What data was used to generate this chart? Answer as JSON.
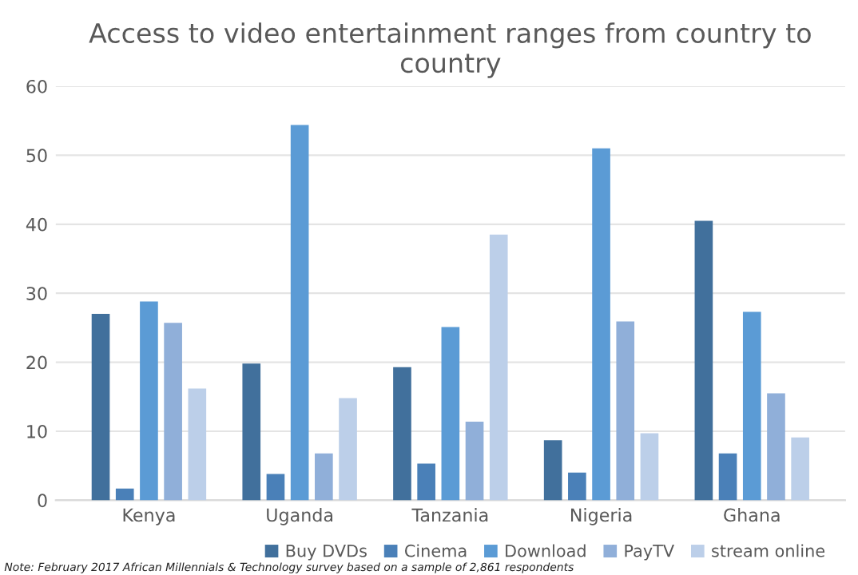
{
  "chart_data": {
    "type": "bar",
    "title": "Access to video entertainment ranges from country to country",
    "categories": [
      "Kenya",
      "Uganda",
      "Tanzania",
      "Nigeria",
      "Ghana"
    ],
    "series": [
      {
        "name": "Buy DVDs",
        "color": "#41709c",
        "values": [
          27,
          19.8,
          19.3,
          8.7,
          40.5
        ]
      },
      {
        "name": "Cinema",
        "color": "#4a80b8",
        "values": [
          1.7,
          3.8,
          5.3,
          4.0,
          6.8
        ]
      },
      {
        "name": "Download",
        "color": "#5b9bd5",
        "values": [
          28.8,
          54.4,
          25.1,
          51,
          27.3
        ]
      },
      {
        "name": "PayTV",
        "color": "#90afd9",
        "values": [
          25.7,
          6.8,
          11.4,
          25.9,
          15.5
        ]
      },
      {
        "name": "stream online",
        "color": "#bccfe9",
        "values": [
          16.2,
          14.8,
          38.5,
          9.7,
          9.1
        ]
      }
    ],
    "ylim": [
      0,
      60
    ],
    "yticks": [
      0,
      10,
      20,
      30,
      40,
      50,
      60
    ],
    "grid": "y",
    "legend": "bottom",
    "annotations": [
      "Note: February 2017 African Millennials & Technology survey based on a sample of 2,861 respondents"
    ]
  }
}
